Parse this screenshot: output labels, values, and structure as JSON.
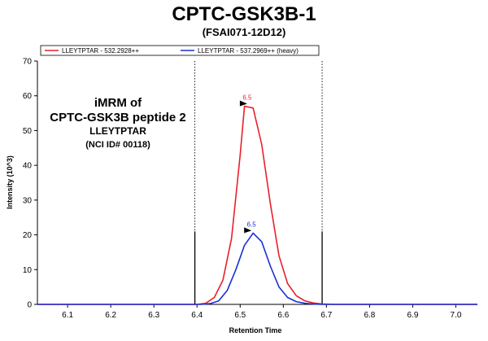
{
  "chart_data": {
    "type": "line",
    "title": "CPTC-GSK3B-1",
    "subtitle": "(FSAI071-12D12)",
    "xlabel": "Retention Time",
    "ylabel": "Intensity (10^3)",
    "xlim": [
      6.03,
      7.05
    ],
    "ylim": [
      0,
      70
    ],
    "x_ticks": [
      "6.1",
      "6.2",
      "6.3",
      "6.4",
      "6.5",
      "6.6",
      "6.7",
      "6.8",
      "6.9",
      "7.0"
    ],
    "y_ticks": [
      "0",
      "10",
      "20",
      "30",
      "40",
      "50",
      "60",
      "70"
    ],
    "legend_position": "top",
    "series": [
      {
        "name": "LLEYTPTAR - 532.2928++",
        "color": "#e8202a",
        "x": [
          6.03,
          6.4,
          6.42,
          6.44,
          6.46,
          6.48,
          6.5,
          6.51,
          6.53,
          6.55,
          6.57,
          6.59,
          6.61,
          6.63,
          6.65,
          6.67,
          6.69,
          6.72,
          7.05
        ],
        "y": [
          0,
          0,
          0.3,
          2,
          7,
          19,
          43,
          57,
          56.5,
          46,
          29,
          14,
          6,
          2.5,
          1,
          0.4,
          0.1,
          0,
          0
        ],
        "peak_label": "6.5",
        "peak_x": 6.52,
        "peak_y": 57
      },
      {
        "name": "LLEYTPTAR - 537.2969++ (heavy)",
        "color": "#1a2fd6",
        "x": [
          6.03,
          6.41,
          6.43,
          6.45,
          6.47,
          6.49,
          6.51,
          6.53,
          6.55,
          6.57,
          6.59,
          6.61,
          6.63,
          6.65,
          6.67,
          6.69,
          7.05
        ],
        "y": [
          0,
          0,
          0.2,
          1,
          4,
          10,
          17,
          20.5,
          18,
          11,
          5,
          2,
          0.8,
          0.3,
          0.1,
          0,
          0
        ],
        "peak_label": "6.5",
        "peak_x": 6.53,
        "peak_y": 20.5
      }
    ],
    "boundaries": [
      {
        "x": 6.395,
        "style": "dotted",
        "y_top": 70
      },
      {
        "x": 6.395,
        "style": "solid",
        "y_top": 21
      },
      {
        "x": 6.69,
        "style": "dotted",
        "y_top": 70
      },
      {
        "x": 6.69,
        "style": "solid",
        "y_top": 21
      }
    ],
    "annotation": {
      "line1": "iMRM of",
      "line2": "CPTC-GSK3B peptide 2",
      "line3": "LLEYTPTAR",
      "line4": "(NCI ID# 00118)"
    },
    "grid": false
  }
}
